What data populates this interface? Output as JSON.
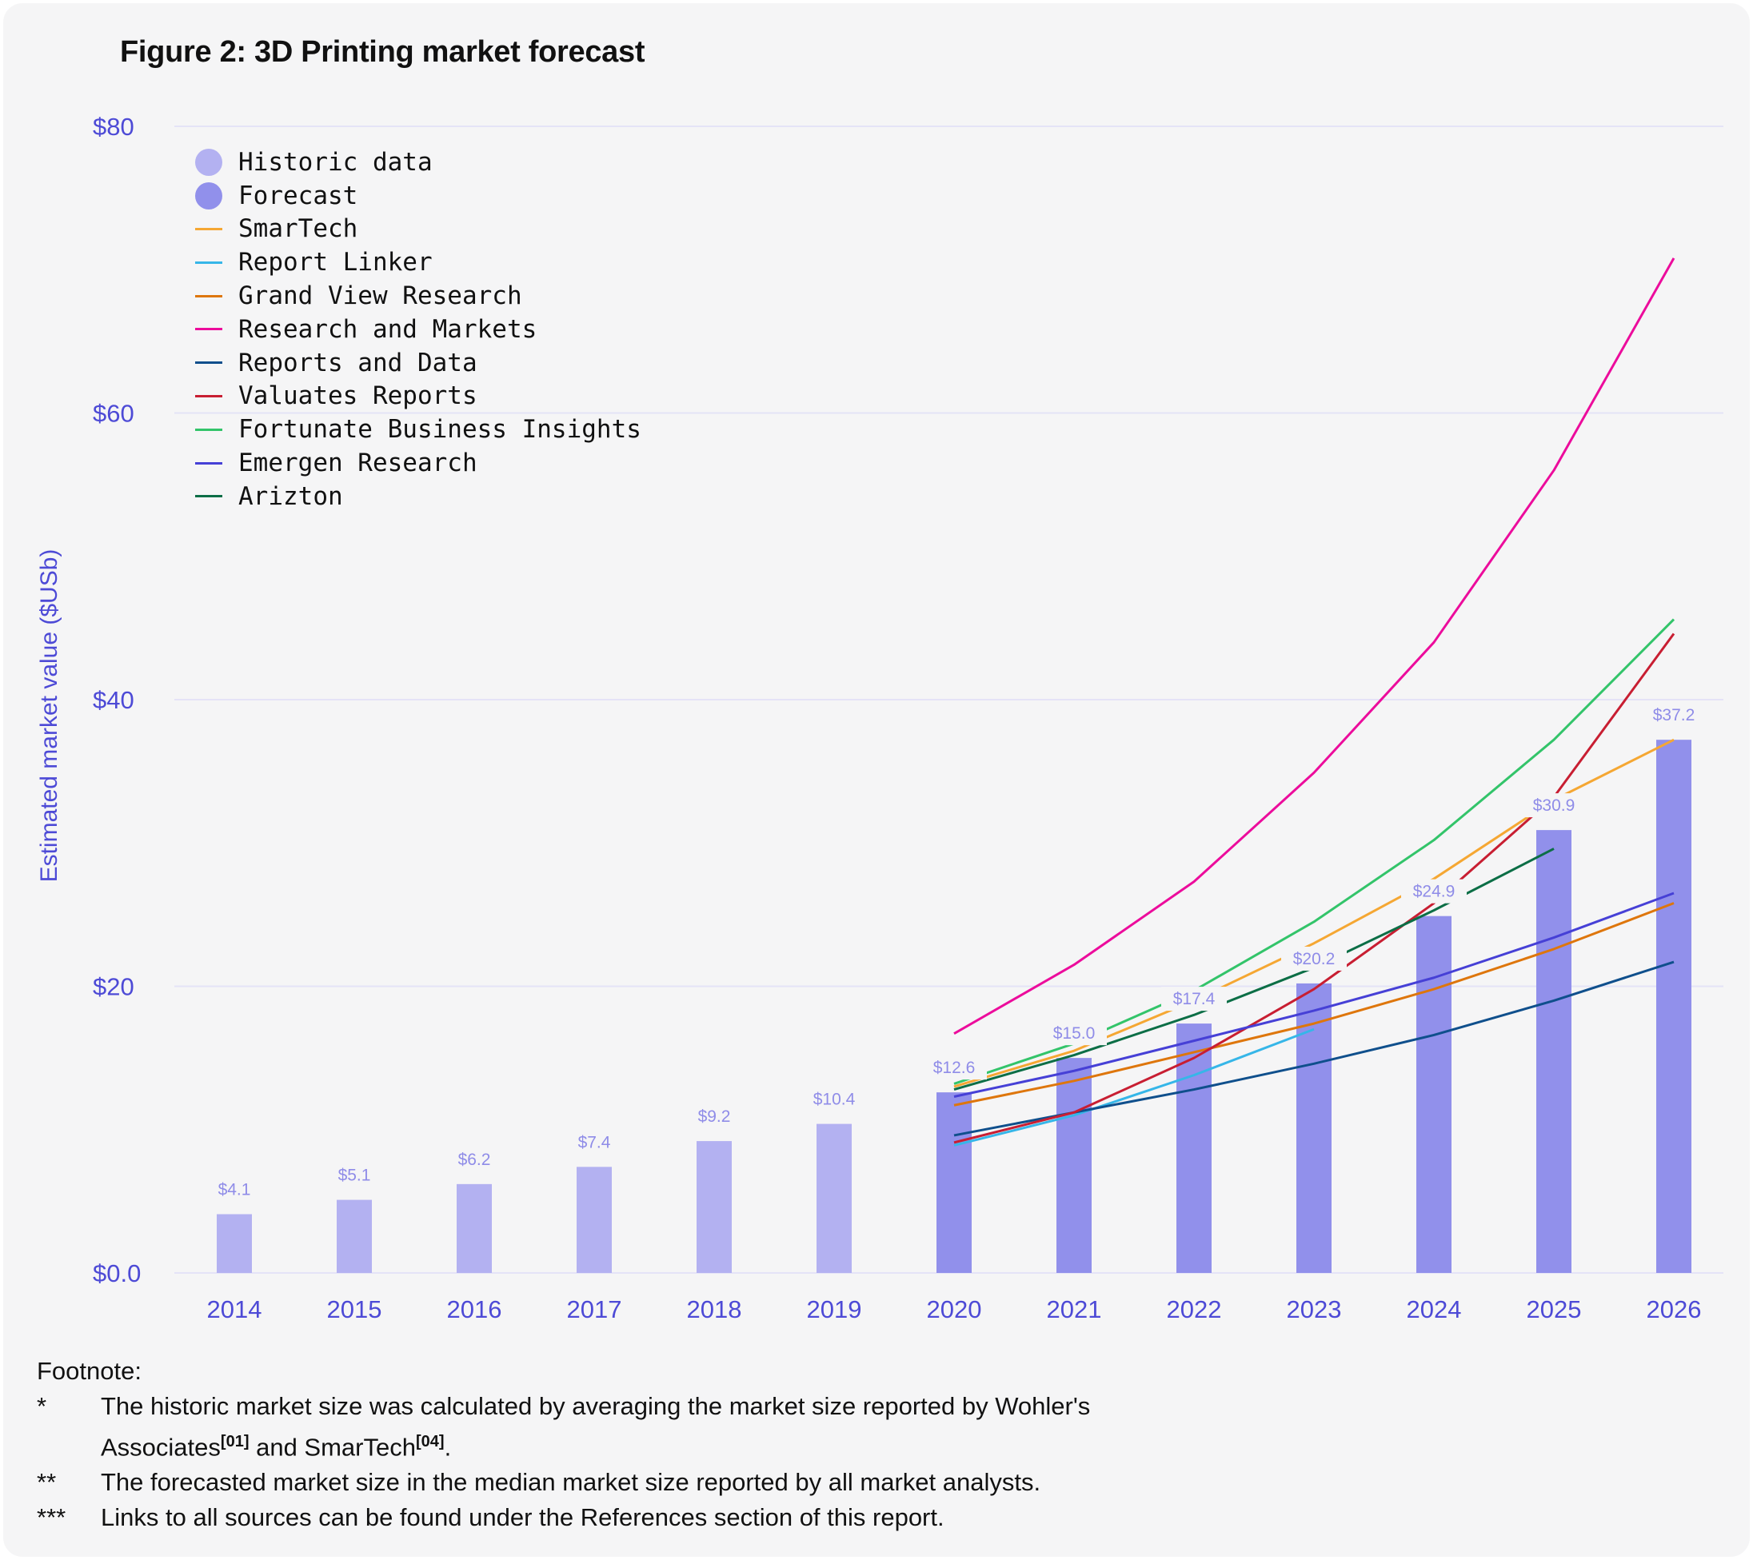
{
  "figure": {
    "title": "Figure 2: 3D Printing market forecast"
  },
  "legend": [
    {
      "label": "Historic data",
      "kind": "dot",
      "color": "#b3b1f1"
    },
    {
      "label": "Forecast",
      "kind": "dot",
      "color": "#9190eb"
    },
    {
      "label": "SmarTech",
      "kind": "line",
      "color": "#f5a733"
    },
    {
      "label": "Report Linker",
      "kind": "line",
      "color": "#36b6e8"
    },
    {
      "label": "Grand View Research",
      "kind": "line",
      "color": "#de760c"
    },
    {
      "label": "Research and Markets",
      "kind": "line",
      "color": "#ec0c9c"
    },
    {
      "label": "Reports and Data",
      "kind": "line",
      "color": "#0f4f8c"
    },
    {
      "label": "Valuates Reports",
      "kind": "line",
      "color": "#c81e32"
    },
    {
      "label": "Fortunate Business Insights",
      "kind": "line",
      "color": "#33c46a"
    },
    {
      "label": "Emergen Research",
      "kind": "line",
      "color": "#4640d6"
    },
    {
      "label": "Arizton",
      "kind": "line",
      "color": "#0c6e46"
    }
  ],
  "chart_data": {
    "type": "bar",
    "title": "Figure 2: 3D Printing market forecast",
    "xlabel": "",
    "ylabel": "Estimated market value ($USb)",
    "ylim": [
      0,
      80
    ],
    "yticks": [
      0,
      20,
      40,
      60,
      80
    ],
    "ytick_labels": [
      "$0.0",
      "$20",
      "$40",
      "$60",
      "$80"
    ],
    "grid": true,
    "legend_position": "top-left",
    "categories": [
      "2014",
      "2015",
      "2016",
      "2017",
      "2018",
      "2019",
      "2020",
      "2021",
      "2022",
      "2023",
      "2024",
      "2025",
      "2026"
    ],
    "bars": {
      "historic": {
        "name": "Historic data",
        "color": "#b3b1f1",
        "values": [
          4.1,
          5.1,
          6.2,
          7.4,
          9.2,
          10.4,
          null,
          null,
          null,
          null,
          null,
          null,
          null
        ],
        "labels": [
          "$4.1",
          "$5.1",
          "$6.2",
          "$7.4",
          "$9.2",
          "$10.4",
          "",
          "",
          "",
          "",
          "",
          "",
          ""
        ]
      },
      "forecast": {
        "name": "Forecast",
        "color": "#9190eb",
        "values": [
          null,
          null,
          null,
          null,
          null,
          null,
          12.6,
          15.0,
          17.4,
          20.2,
          24.9,
          30.9,
          37.2
        ],
        "labels": [
          "",
          "",
          "",
          "",
          "",
          "",
          "$12.6",
          "$15.0",
          "$17.4",
          "$20.2",
          "$24.9",
          "$30.9",
          "$37.2"
        ]
      }
    },
    "series": [
      {
        "name": "SmarTech",
        "type": "line",
        "color": "#f5a733",
        "x": [
          "2020",
          "2021",
          "2022",
          "2023",
          "2024",
          "2025",
          "2026"
        ],
        "values": [
          13.0,
          15.5,
          19.0,
          23.0,
          27.5,
          33.0,
          37.2
        ]
      },
      {
        "name": "Report Linker",
        "type": "line",
        "color": "#36b6e8",
        "x": [
          "2020",
          "2021",
          "2022",
          "2023"
        ],
        "values": [
          8.9,
          11.0,
          13.8,
          17.0
        ]
      },
      {
        "name": "Grand View Research",
        "type": "line",
        "color": "#de760c",
        "x": [
          "2020",
          "2021",
          "2022",
          "2023",
          "2024",
          "2025",
          "2026"
        ],
        "values": [
          11.7,
          13.4,
          15.4,
          17.4,
          19.8,
          22.6,
          25.8
        ]
      },
      {
        "name": "Research and Markets",
        "type": "line",
        "color": "#ec0c9c",
        "x": [
          "2020",
          "2021",
          "2022",
          "2023",
          "2024",
          "2025",
          "2026"
        ],
        "values": [
          16.7,
          21.5,
          27.3,
          34.9,
          44.0,
          56.0,
          70.8
        ]
      },
      {
        "name": "Reports and Data",
        "type": "line",
        "color": "#0f4f8c",
        "x": [
          "2020",
          "2021",
          "2022",
          "2023",
          "2024",
          "2025",
          "2026"
        ],
        "values": [
          9.6,
          11.2,
          12.8,
          14.6,
          16.6,
          19.0,
          21.7
        ]
      },
      {
        "name": "Valuates Reports",
        "type": "line",
        "color": "#c81e32",
        "x": [
          "2020",
          "2021",
          "2022",
          "2023",
          "2024",
          "2025",
          "2026"
        ],
        "values": [
          9.1,
          11.2,
          15.0,
          19.8,
          25.8,
          33.2,
          44.6
        ]
      },
      {
        "name": "Fortunate Business Insights",
        "type": "line",
        "color": "#33c46a",
        "x": [
          "2020",
          "2021",
          "2022",
          "2023",
          "2024",
          "2025",
          "2026"
        ],
        "values": [
          13.2,
          16.0,
          19.7,
          24.5,
          30.2,
          37.2,
          45.6
        ]
      },
      {
        "name": "Emergen Research",
        "type": "line",
        "color": "#4640d6",
        "x": [
          "2020",
          "2021",
          "2022",
          "2023",
          "2024",
          "2025",
          "2026"
        ],
        "values": [
          12.3,
          14.1,
          16.2,
          18.3,
          20.6,
          23.4,
          26.5
        ]
      },
      {
        "name": "Arizton",
        "type": "line",
        "color": "#0c6e46",
        "x": [
          "2020",
          "2021",
          "2022",
          "2023",
          "2024",
          "2025"
        ],
        "values": [
          12.8,
          15.2,
          18.0,
          21.3,
          25.3,
          29.6
        ]
      }
    ]
  },
  "colors": {
    "axis_text": "#4d4ad6",
    "bar_label": "#8f8ce8",
    "grid": "#e4e3f7",
    "background": "#f5f5f6"
  },
  "footnote": {
    "heading": "Footnote:",
    "items": [
      {
        "marker": "*",
        "text_before": "The historic market size was calculated by averaging the market size reported by Wohler's Associates",
        "sup1": "[01]",
        "text_middle": " and SmarTech",
        "sup2": "[04]",
        "text_after": "."
      },
      {
        "marker": "**",
        "text": "The forecasted market size in the median market size reported by all market analysts."
      },
      {
        "marker": "***",
        "text": "Links to all sources can be found under the References section of this report."
      }
    ]
  }
}
